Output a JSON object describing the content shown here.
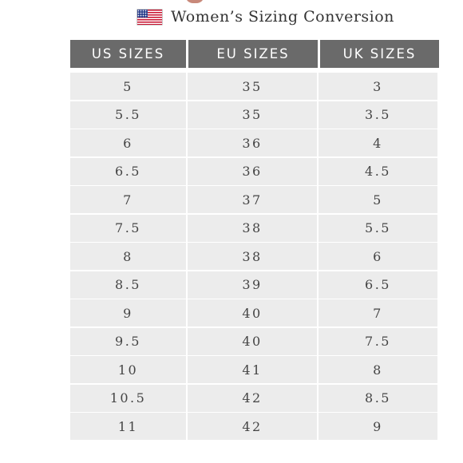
{
  "title": "Women’s Sizing Conversion",
  "colors": {
    "header_bg": "#6a6a6a",
    "row_bg": "#ececec",
    "title_text": "#333333"
  },
  "table": {
    "headers": [
      "US SIZES",
      "EU SIZES",
      "UK SIZES"
    ],
    "rows": [
      [
        "5",
        "35",
        "3"
      ],
      [
        "5.5",
        "35",
        "3.5"
      ],
      [
        "6",
        "36",
        "4"
      ],
      [
        "6.5",
        "36",
        "4.5"
      ],
      [
        "7",
        "37",
        "5"
      ],
      [
        "7.5",
        "38",
        "5.5"
      ],
      [
        "8",
        "38",
        "6"
      ],
      [
        "8.5",
        "39",
        "6.5"
      ],
      [
        "9",
        "40",
        "7"
      ],
      [
        "9.5",
        "40",
        "7.5"
      ],
      [
        "10",
        "41",
        "8"
      ],
      [
        "10.5",
        "42",
        "8.5"
      ],
      [
        "11",
        "42",
        "9"
      ]
    ]
  }
}
